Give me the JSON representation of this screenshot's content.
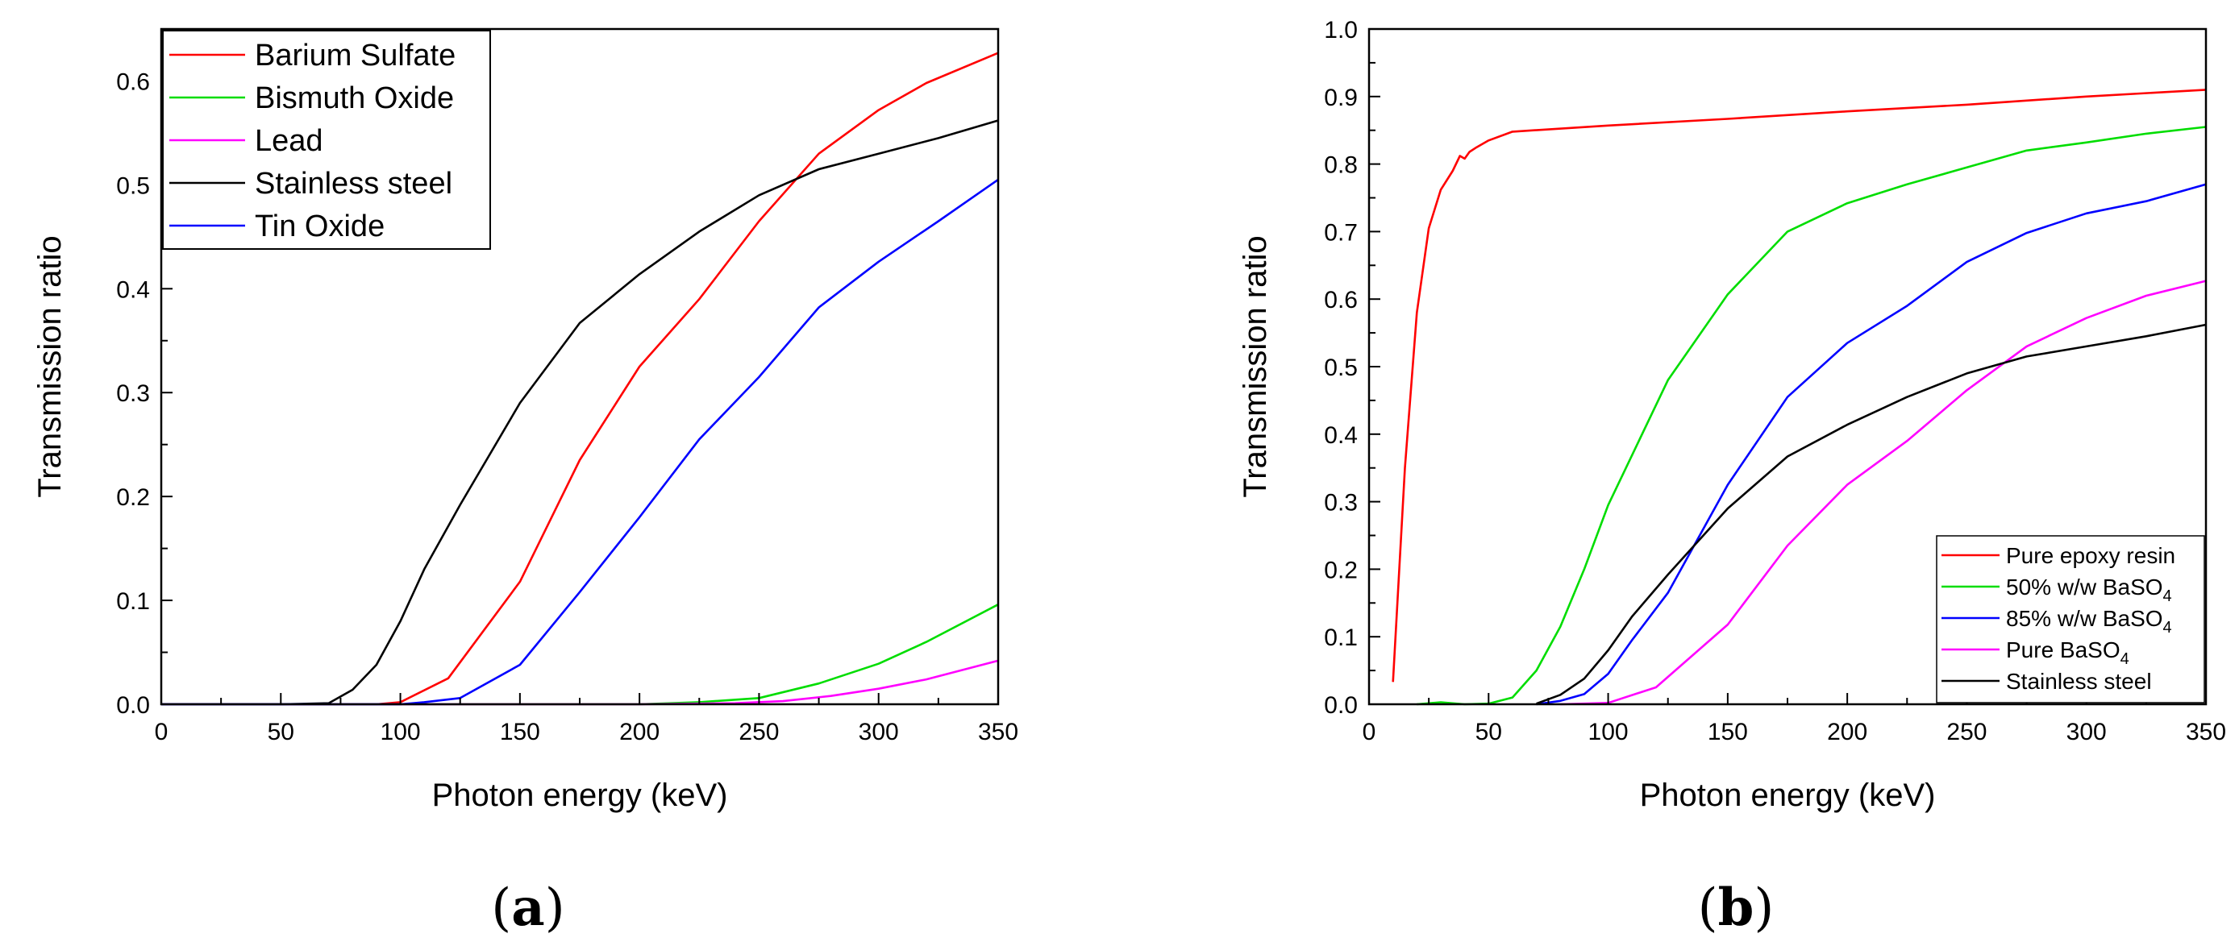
{
  "chart_data": [
    {
      "type": "line",
      "panel_label": "a",
      "xlabel": "Photon energy (keV)",
      "ylabel": "Transmission ratio",
      "xlim": [
        0,
        350
      ],
      "ylim": [
        0,
        0.65
      ],
      "xticks": [
        0,
        50,
        100,
        150,
        200,
        250,
        300,
        350
      ],
      "yticks": [
        0.0,
        0.1,
        0.2,
        0.3,
        0.4,
        0.5,
        0.6
      ],
      "ytick_decimals": 1,
      "grid": false,
      "legend_position": "top-left",
      "series": [
        {
          "name": "Barium Sulfate",
          "color": "#ff0000",
          "points": [
            [
              0,
              0
            ],
            [
              50,
              0
            ],
            [
              90,
              0
            ],
            [
              100,
              0.002
            ],
            [
              120,
              0.025
            ],
            [
              150,
              0.118
            ],
            [
              175,
              0.235
            ],
            [
              200,
              0.325
            ],
            [
              225,
              0.39
            ],
            [
              250,
              0.465
            ],
            [
              275,
              0.53
            ],
            [
              300,
              0.572
            ],
            [
              320,
              0.598
            ],
            [
              350,
              0.627
            ]
          ]
        },
        {
          "name": "Bismuth Oxide",
          "color": "#00dd00",
          "points": [
            [
              0,
              0
            ],
            [
              100,
              0
            ],
            [
              150,
              0
            ],
            [
              200,
              0
            ],
            [
              225,
              0.002
            ],
            [
              250,
              0.006
            ],
            [
              275,
              0.02
            ],
            [
              300,
              0.039
            ],
            [
              320,
              0.06
            ],
            [
              350,
              0.096
            ]
          ]
        },
        {
          "name": "Lead",
          "color": "#ff00ff",
          "points": [
            [
              0,
              0
            ],
            [
              100,
              0
            ],
            [
              150,
              0
            ],
            [
              200,
              0
            ],
            [
              240,
              0.001
            ],
            [
              260,
              0.003
            ],
            [
              280,
              0.008
            ],
            [
              300,
              0.015
            ],
            [
              320,
              0.024
            ],
            [
              350,
              0.042
            ]
          ]
        },
        {
          "name": "Stainless steel",
          "color": "#000000",
          "points": [
            [
              0,
              0
            ],
            [
              50,
              0
            ],
            [
              70,
              0.001
            ],
            [
              80,
              0.014
            ],
            [
              90,
              0.038
            ],
            [
              100,
              0.08
            ],
            [
              110,
              0.13
            ],
            [
              125,
              0.192
            ],
            [
              150,
              0.29
            ],
            [
              175,
              0.367
            ],
            [
              200,
              0.414
            ],
            [
              225,
              0.455
            ],
            [
              250,
              0.49
            ],
            [
              275,
              0.515
            ],
            [
              300,
              0.53
            ],
            [
              325,
              0.545
            ],
            [
              350,
              0.562
            ]
          ]
        },
        {
          "name": "Tin Oxide",
          "color": "#0000ff",
          "points": [
            [
              0,
              0
            ],
            [
              50,
              0
            ],
            [
              100,
              0
            ],
            [
              110,
              0.002
            ],
            [
              125,
              0.006
            ],
            [
              150,
              0.038
            ],
            [
              175,
              0.108
            ],
            [
              200,
              0.18
            ],
            [
              225,
              0.255
            ],
            [
              250,
              0.315
            ],
            [
              275,
              0.382
            ],
            [
              300,
              0.426
            ],
            [
              325,
              0.465
            ],
            [
              350,
              0.505
            ]
          ]
        }
      ]
    },
    {
      "type": "line",
      "panel_label": "b",
      "xlabel": "Photon energy (keV)",
      "ylabel": "Transmission ratio",
      "xlim": [
        0,
        350
      ],
      "ylim": [
        0,
        1.0
      ],
      "xticks": [
        0,
        50,
        100,
        150,
        200,
        250,
        300,
        350
      ],
      "yticks": [
        0.0,
        0.1,
        0.2,
        0.3,
        0.4,
        0.5,
        0.6,
        0.7,
        0.8,
        0.9,
        1.0
      ],
      "ytick_decimals": 1,
      "grid": false,
      "legend_position": "bottom-right",
      "series": [
        {
          "name": "Pure epoxy resin",
          "sub": "",
          "color": "#ff0000",
          "points": [
            [
              10,
              0.033
            ],
            [
              15,
              0.35
            ],
            [
              20,
              0.58
            ],
            [
              25,
              0.705
            ],
            [
              30,
              0.762
            ],
            [
              35,
              0.79
            ],
            [
              38,
              0.812
            ],
            [
              40,
              0.808
            ],
            [
              42,
              0.818
            ],
            [
              45,
              0.825
            ],
            [
              50,
              0.835
            ],
            [
              60,
              0.848
            ],
            [
              100,
              0.857
            ],
            [
              150,
              0.867
            ],
            [
              200,
              0.878
            ],
            [
              250,
              0.888
            ],
            [
              300,
              0.9
            ],
            [
              350,
              0.91
            ]
          ]
        },
        {
          "name": "50% w/w BaSO",
          "sub": "4",
          "color": "#00dd00",
          "points": [
            [
              20,
              0
            ],
            [
              30,
              0.003
            ],
            [
              40,
              0
            ],
            [
              50,
              0.001
            ],
            [
              60,
              0.01
            ],
            [
              70,
              0.05
            ],
            [
              80,
              0.115
            ],
            [
              90,
              0.2
            ],
            [
              100,
              0.295
            ],
            [
              125,
              0.48
            ],
            [
              150,
              0.607
            ],
            [
              175,
              0.7
            ],
            [
              200,
              0.742
            ],
            [
              225,
              0.77
            ],
            [
              250,
              0.795
            ],
            [
              275,
              0.82
            ],
            [
              300,
              0.832
            ],
            [
              325,
              0.845
            ],
            [
              350,
              0.855
            ]
          ]
        },
        {
          "name": "85% w/w BaSO",
          "sub": "4",
          "color": "#0000ff",
          "points": [
            [
              70,
              0
            ],
            [
              80,
              0.005
            ],
            [
              90,
              0.015
            ],
            [
              100,
              0.045
            ],
            [
              110,
              0.095
            ],
            [
              125,
              0.165
            ],
            [
              150,
              0.325
            ],
            [
              175,
              0.455
            ],
            [
              200,
              0.535
            ],
            [
              225,
              0.59
            ],
            [
              250,
              0.655
            ],
            [
              275,
              0.698
            ],
            [
              300,
              0.727
            ],
            [
              325,
              0.745
            ],
            [
              350,
              0.77
            ]
          ]
        },
        {
          "name": "Pure BaSO",
          "sub": "4",
          "color": "#ff00ff",
          "points": [
            [
              80,
              0
            ],
            [
              100,
              0.002
            ],
            [
              120,
              0.025
            ],
            [
              150,
              0.118
            ],
            [
              175,
              0.235
            ],
            [
              200,
              0.325
            ],
            [
              225,
              0.39
            ],
            [
              250,
              0.465
            ],
            [
              275,
              0.53
            ],
            [
              300,
              0.572
            ],
            [
              325,
              0.605
            ],
            [
              350,
              0.627
            ]
          ]
        },
        {
          "name": "Stainless steel",
          "sub": "",
          "color": "#000000",
          "points": [
            [
              70,
              0.001
            ],
            [
              80,
              0.014
            ],
            [
              90,
              0.038
            ],
            [
              100,
              0.08
            ],
            [
              110,
              0.13
            ],
            [
              125,
              0.192
            ],
            [
              150,
              0.29
            ],
            [
              175,
              0.367
            ],
            [
              200,
              0.414
            ],
            [
              225,
              0.455
            ],
            [
              250,
              0.49
            ],
            [
              275,
              0.515
            ],
            [
              300,
              0.53
            ],
            [
              325,
              0.545
            ],
            [
              350,
              0.562
            ]
          ]
        }
      ]
    }
  ]
}
